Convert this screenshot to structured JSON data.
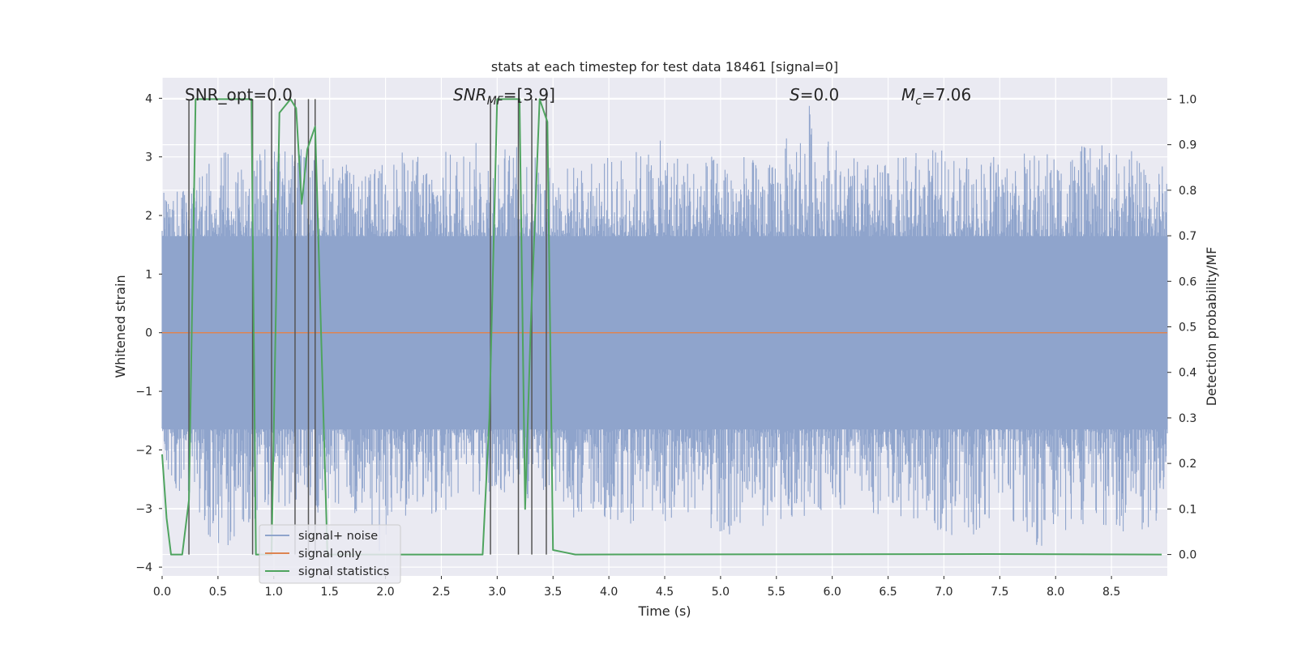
{
  "chart_data": {
    "type": "line",
    "title": "stats at each timestep for test data 18461 [signal=0]",
    "xlabel": "Time (s)",
    "ylabel": "Whitened strain",
    "y2label": "Detection probability/MF",
    "xlim": [
      0.0,
      9.0
    ],
    "ylim": [
      -4.15,
      4.35
    ],
    "y2lim": [
      -0.047,
      1.047
    ],
    "x_ticks": [
      "0.0",
      "0.5",
      "1.0",
      "1.5",
      "2.0",
      "2.5",
      "3.0",
      "3.5",
      "4.0",
      "4.5",
      "5.0",
      "5.5",
      "6.0",
      "6.5",
      "7.0",
      "7.5",
      "8.0",
      "8.5"
    ],
    "y_ticks": [
      "−4",
      "−3",
      "−2",
      "−1",
      "0",
      "1",
      "2",
      "3",
      "4"
    ],
    "y2_ticks": [
      "0.0",
      "0.1",
      "0.2",
      "0.3",
      "0.4",
      "0.5",
      "0.6",
      "0.7",
      "0.8",
      "0.9",
      "1.0"
    ],
    "grid": true,
    "legend_position": "lower-left",
    "annotations": {
      "snr_opt": "SNR_opt=0.0",
      "snr_mf_prefix": "SNR",
      "snr_mf_sub": "MF",
      "snr_mf_value": "=[3.9]",
      "s_prefix": "S",
      "s_value": "=0.0",
      "mc_prefix": "M",
      "mc_sub": "c",
      "mc_value": "=7.06"
    },
    "series": [
      {
        "name": "signal+ noise",
        "color": "#8fa4cc",
        "description_axis": "left",
        "envelope_peaks": [
          [
            0.05,
            2.4,
            -2.6
          ],
          [
            0.25,
            2.5,
            -2.8
          ],
          [
            0.5,
            3.2,
            -3.8
          ],
          [
            0.78,
            3.2,
            -3.3
          ],
          [
            1.05,
            3.3,
            -3.0
          ],
          [
            1.3,
            3.2,
            -3.1
          ],
          [
            1.65,
            2.9,
            -3.1
          ],
          [
            1.75,
            2.6,
            -3.4
          ],
          [
            1.95,
            2.9,
            -3.8
          ],
          [
            2.15,
            3.1,
            -3.2
          ],
          [
            2.5,
            3.1,
            -3.1
          ],
          [
            2.85,
            3.3,
            -2.9
          ],
          [
            3.2,
            3.2,
            -2.8
          ],
          [
            3.5,
            2.9,
            -3.2
          ],
          [
            3.8,
            2.9,
            -3.2
          ],
          [
            4.15,
            3.1,
            -3.3
          ],
          [
            4.5,
            3.3,
            -3.3
          ],
          [
            4.75,
            3.0,
            -3.2
          ],
          [
            5.1,
            3.1,
            -3.5
          ],
          [
            5.45,
            2.9,
            -3.3
          ],
          [
            5.8,
            4.0,
            -3.1
          ],
          [
            6.1,
            3.0,
            -3.0
          ],
          [
            6.5,
            2.9,
            -3.2
          ],
          [
            6.8,
            3.2,
            -3.2
          ],
          [
            7.2,
            3.0,
            -3.7
          ],
          [
            7.5,
            3.1,
            -3.0
          ],
          [
            7.85,
            3.1,
            -3.7
          ],
          [
            8.2,
            3.2,
            -3.4
          ],
          [
            8.6,
            3.2,
            -3.4
          ],
          [
            8.95,
            2.9,
            -3.4
          ]
        ]
      },
      {
        "name": "signal only",
        "color": "#dd8452",
        "description_axis": "left",
        "values": [
          [
            0.0,
            0.0
          ],
          [
            9.0,
            0.0
          ]
        ]
      },
      {
        "name": "signal statistics",
        "color": "#4fa45f",
        "description_axis": "right",
        "points": [
          [
            0.0,
            0.22
          ],
          [
            0.04,
            0.08
          ],
          [
            0.08,
            0.0
          ],
          [
            0.18,
            0.0
          ],
          [
            0.24,
            0.12
          ],
          [
            0.3,
            1.0
          ],
          [
            0.8,
            1.0
          ],
          [
            0.84,
            0.0
          ],
          [
            0.98,
            0.0
          ],
          [
            1.05,
            0.97
          ],
          [
            1.15,
            1.0
          ],
          [
            1.2,
            0.98
          ],
          [
            1.25,
            0.77
          ],
          [
            1.3,
            0.89
          ],
          [
            1.37,
            0.94
          ],
          [
            1.48,
            0.0
          ],
          [
            2.87,
            0.0
          ],
          [
            2.93,
            0.3
          ],
          [
            3.0,
            1.0
          ],
          [
            3.2,
            1.0
          ],
          [
            3.25,
            0.1
          ],
          [
            3.3,
            0.5
          ],
          [
            3.38,
            1.0
          ],
          [
            3.45,
            0.95
          ],
          [
            3.5,
            0.01
          ],
          [
            3.6,
            0.005
          ],
          [
            3.7,
            0.0
          ],
          [
            7.4,
            0.001
          ],
          [
            8.95,
            0.0
          ]
        ]
      }
    ],
    "vertical_markers_x": [
      0.24,
      0.81,
      0.98,
      1.19,
      1.31,
      1.37,
      2.94,
      3.19,
      3.31,
      3.44
    ]
  }
}
